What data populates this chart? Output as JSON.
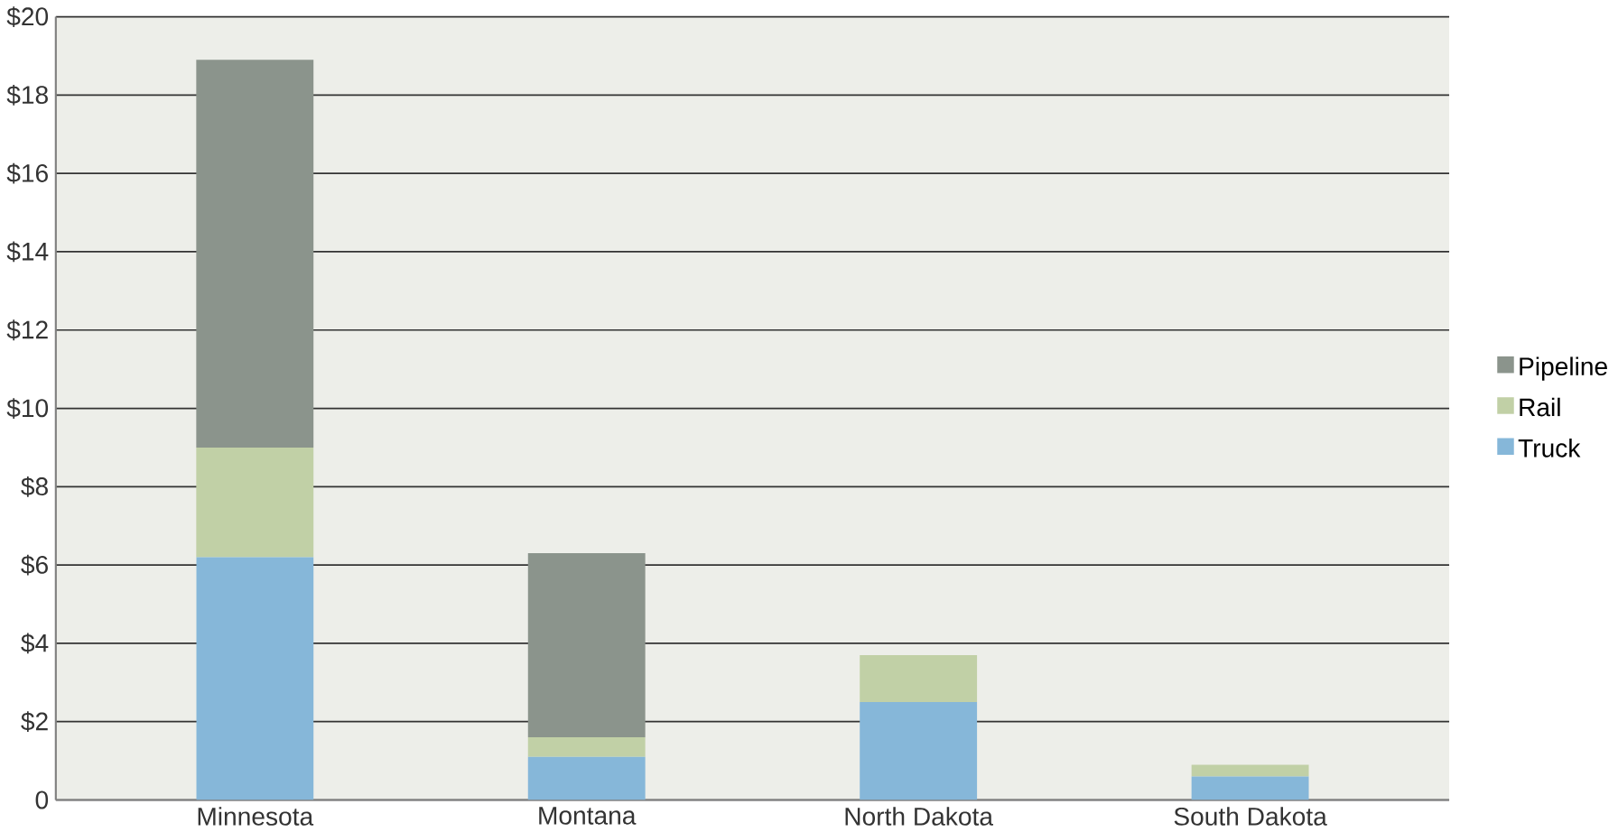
{
  "chart_data": {
    "type": "bar",
    "stacked": true,
    "categories": [
      "Minnesota",
      "Montana",
      "North Dakota",
      "South Dakota"
    ],
    "series": [
      {
        "name": "Truck",
        "color": "#86b7d9",
        "values": [
          6.2,
          1.1,
          2.5,
          0.6
        ]
      },
      {
        "name": "Rail",
        "color": "#c1d0a6",
        "values": [
          2.8,
          0.5,
          1.2,
          0.3
        ]
      },
      {
        "name": "Pipeline",
        "color": "#8b948c",
        "values": [
          9.9,
          4.7,
          0,
          0
        ]
      }
    ],
    "ylim": [
      0,
      20
    ],
    "yticks": [
      0,
      {
        "value": 2,
        "label": "$2"
      },
      {
        "value": 4,
        "label": "$4"
      },
      {
        "value": 6,
        "label": "$6"
      },
      {
        "value": 8,
        "label": "$8"
      },
      {
        "value": 10,
        "label": "$10"
      },
      {
        "value": 12,
        "label": "$12"
      },
      {
        "value": 14,
        "label": "$14"
      },
      {
        "value": 16,
        "label": "$16"
      },
      {
        "value": 18,
        "label": "$18"
      },
      {
        "value": 20,
        "label": "$20"
      }
    ],
    "grid": "y",
    "legend": "right"
  }
}
